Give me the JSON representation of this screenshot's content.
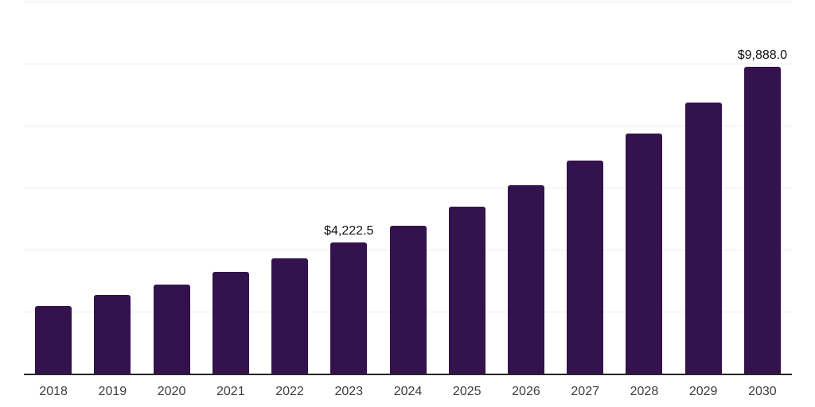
{
  "chart": {
    "background_color": "#ffffff",
    "bar_color": "#33124E",
    "gridline_color": "#ededed",
    "axis_line_color": "#262626",
    "data_label_color": "#111111",
    "tick_label_color": "#3d3d3d"
  },
  "chart_data": {
    "type": "bar",
    "title": "",
    "xlabel": "",
    "ylabel": "",
    "categories": [
      "2018",
      "2019",
      "2020",
      "2021",
      "2022",
      "2023",
      "2024",
      "2025",
      "2026",
      "2027",
      "2028",
      "2029",
      "2030"
    ],
    "values": [
      2170,
      2530,
      2865,
      3270,
      3710,
      4222.5,
      4765,
      5380,
      6075,
      6860,
      7750,
      8750,
      9888
    ],
    "data_labels": [
      "",
      "",
      "",
      "",
      "",
      "$4,222.5",
      "",
      "",
      "",
      "",
      "",
      "",
      "$9,888.0"
    ],
    "ylim": [
      0,
      12000
    ],
    "gridline_step": 2000,
    "grid": true,
    "legend": false,
    "y_axis_tick_labels_visible": false
  }
}
